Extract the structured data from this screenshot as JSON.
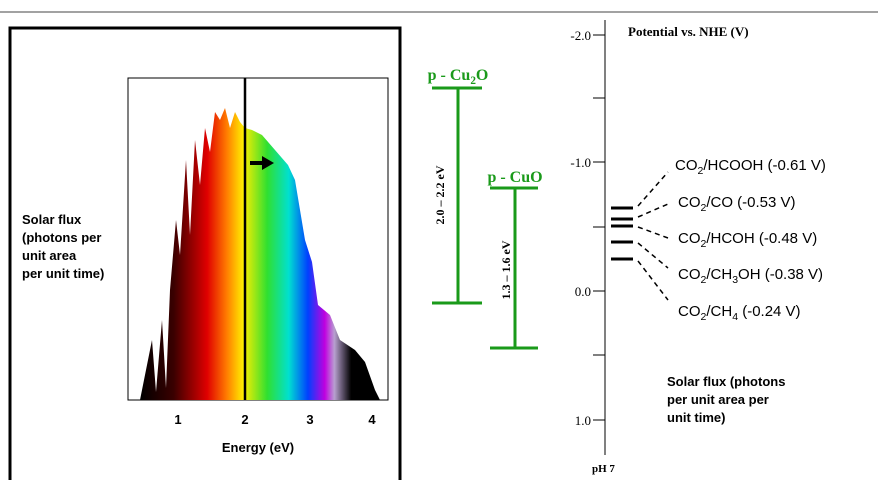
{
  "left_panel": {
    "y_label": [
      "Solar flux",
      "(photons per",
      "unit area",
      "per unit time)"
    ],
    "x_ticks": [
      "1",
      "2",
      "3",
      "4"
    ],
    "x_label": "Energy (eV)"
  },
  "bands": [
    {
      "label": [
        "p - Cu",
        "2",
        "O"
      ],
      "gap": "2.0 – 2.2 eV"
    },
    {
      "label": [
        "p - CuO"
      ],
      "gap": "1.3 – 1.6 eV"
    }
  ],
  "potential_axis": {
    "title": "Potential vs. NHE (V)",
    "ticks": [
      "-2.0",
      "-1.0",
      "0.0",
      "1.0"
    ],
    "bottom_label": "pH 7"
  },
  "redox": [
    [
      "CO",
      "2",
      "/HCOOH (-0.61 V)"
    ],
    [
      "CO",
      "2",
      "/CO (-0.53 V)"
    ],
    [
      "CO",
      "2",
      "/HCOH (-0.48 V)"
    ],
    [
      "CO",
      "2",
      "/CH",
      "3",
      "OH (-0.38 V)"
    ],
    [
      "CO",
      "2",
      "/CH",
      "4",
      " (-0.24 V)"
    ]
  ],
  "note": [
    "Solar flux (photons",
    "per unit area per",
    "unit time)"
  ]
}
